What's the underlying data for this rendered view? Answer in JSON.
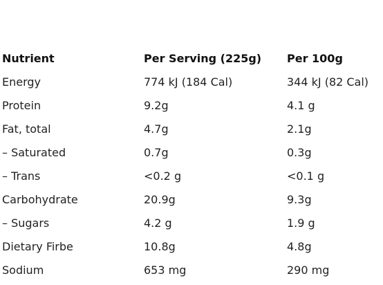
{
  "table": {
    "headers": [
      "Nutrient",
      "Per Serving (225g)",
      "Per 100g"
    ],
    "rows": [
      [
        "Energy",
        "774 kJ (184 Cal)",
        "344 kJ (82 Cal)"
      ],
      [
        "Protein",
        "9.2g",
        "4.1 g"
      ],
      [
        "Fat, total",
        "4.7g",
        "2.1g"
      ],
      [
        "– Saturated",
        "0.7g",
        "0.3g"
      ],
      [
        "– Trans",
        "<0.2 g",
        "<0.1 g"
      ],
      [
        "Carbohydrate",
        "20.9g",
        "9.3g"
      ],
      [
        "– Sugars",
        "4.2 g",
        "1.9 g"
      ],
      [
        "Dietary Firbe",
        "10.8g",
        "4.8g"
      ],
      [
        "Sodium",
        "653 mg",
        "290 mg"
      ]
    ]
  }
}
